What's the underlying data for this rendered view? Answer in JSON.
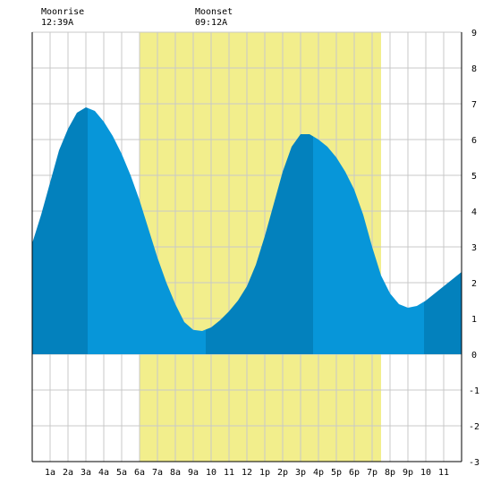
{
  "moon": {
    "moonrise_label": "Moonrise",
    "moonrise_time": "12:39A",
    "moonset_label": "Moonset",
    "moonset_time": "09:12A"
  },
  "colors": {
    "daylight": "#f2ee8c",
    "rising_tide": "#0381bd",
    "falling_tide": "#0796d9",
    "grid": "#c8c8c8",
    "axis": "#000000"
  },
  "chart_data": {
    "type": "area",
    "title": "",
    "xlabel": "",
    "ylabel": "",
    "xlim": [
      0,
      24
    ],
    "ylim": [
      -3,
      9
    ],
    "grid": true,
    "x_tick_labels": [
      "1a",
      "2a",
      "3a",
      "4a",
      "5a",
      "6a",
      "7a",
      "8a",
      "9a",
      "10",
      "11",
      "12",
      "1p",
      "2p",
      "3p",
      "4p",
      "5p",
      "6p",
      "7p",
      "8p",
      "9p",
      "10",
      "11"
    ],
    "y_tick_labels": [
      "9",
      "8",
      "7",
      "6",
      "5",
      "4",
      "3",
      "2",
      "1",
      "0",
      "-1",
      "-2",
      "-3"
    ],
    "daylight_hours": [
      6.0,
      19.5
    ],
    "moonrise_hour": 0.65,
    "moonset_hour": 9.2,
    "tide_extremes": [
      {
        "hour": 3.1,
        "height": 6.9,
        "kind": "high"
      },
      {
        "hour": 9.7,
        "height": 0.65,
        "kind": "low"
      },
      {
        "hour": 15.7,
        "height": 6.2,
        "kind": "high"
      },
      {
        "hour": 21.9,
        "height": 1.3,
        "kind": "low"
      }
    ],
    "series": [
      {
        "x": [
          0,
          0.5,
          1,
          1.5,
          2,
          2.5,
          3,
          3.5,
          4,
          4.5,
          5,
          5.5,
          6,
          6.5,
          7,
          7.5,
          8,
          8.5,
          9,
          9.5,
          10,
          10.5,
          11,
          11.5,
          12,
          12.5,
          13,
          13.5,
          14,
          14.5,
          15,
          15.5,
          16,
          16.5,
          17,
          17.5,
          18,
          18.5,
          19,
          19.5,
          20,
          20.5,
          21,
          21.5,
          22,
          22.5,
          23,
          23.5,
          24
        ],
        "y": [
          3.1,
          3.9,
          4.8,
          5.7,
          6.3,
          6.75,
          6.9,
          6.8,
          6.5,
          6.1,
          5.6,
          5.0,
          4.3,
          3.5,
          2.7,
          2.0,
          1.4,
          0.9,
          0.68,
          0.65,
          0.75,
          0.95,
          1.2,
          1.5,
          1.9,
          2.5,
          3.3,
          4.2,
          5.1,
          5.8,
          6.15,
          6.15,
          6.0,
          5.8,
          5.5,
          5.1,
          4.6,
          3.9,
          3.0,
          2.2,
          1.7,
          1.4,
          1.3,
          1.35,
          1.5,
          1.7,
          1.9,
          2.1,
          2.3
        ]
      }
    ]
  }
}
